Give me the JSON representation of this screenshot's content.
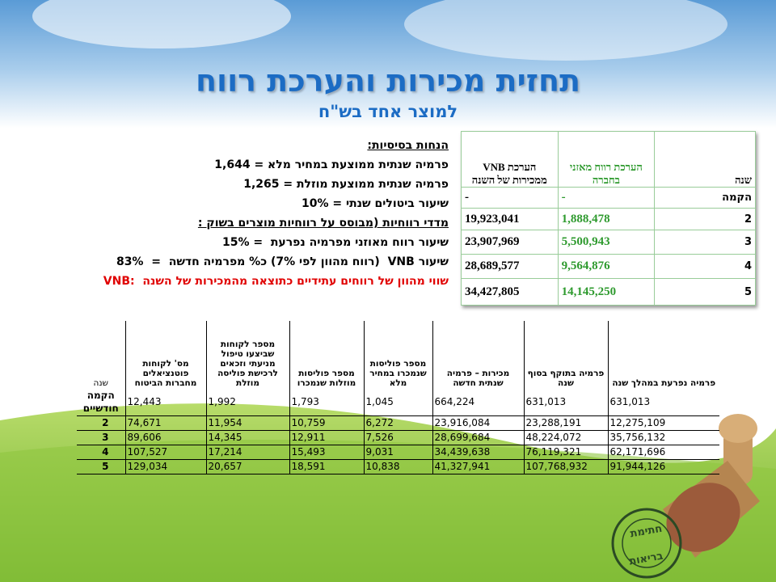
{
  "header": {
    "title": "תחזית מכירות והערכת רווח",
    "subtitle": "למוצר אחד בש\"ח"
  },
  "assumptions": {
    "heading": "הנחות בסיסיות:",
    "lines": [
      "פרמיה שנתית ממוצעת במחיר מלא = 1,644",
      "פרמיה שנתית ממוצעת מוזלת = 1,265",
      "שיעור ביטולים שנתי = 10%"
    ],
    "subheading": "מדדי רווחיות (מבוסס על רווחיות מוצרים בשוק :",
    "metrics": [
      "שיעור רווח מאוזני מפרמיה נפרעת  = 15%",
      "שיעור VNB  (רווח מהוון לפי 7%) כ% מפרמיה חדשה  =  83%"
    ],
    "note": "שווי מהוון של רווחים עתידיים כתוצאה מהמכירות של השנה  :VNB"
  },
  "profit_table": {
    "headers": [
      "שנה",
      "הערכת רווח מאזני בחברה",
      "הערכת VNB ממכירות של השנה"
    ],
    "rows": [
      [
        "הקמה",
        "-",
        "-"
      ],
      [
        "2",
        "1,888,478",
        "19,923,041"
      ],
      [
        "3",
        "5,500,943",
        "23,907,969"
      ],
      [
        "4",
        "9,564,876",
        "28,689,577"
      ],
      [
        "5",
        "14,145,250",
        "34,427,805"
      ]
    ]
  },
  "sales_table": {
    "headers": [
      "שנה",
      "מס' לקוחות פוטנציאלים מחברות הביטוח",
      "מספר לקוחות שביצעו טיפול מניעתי וזכאים לרכישת פוליסה מוזלת",
      "מספר פוליסות מוזלות שנמכרו",
      "מספר פוליסות שנמכרו במחיר מלא",
      "מכירות – פרמיה שנתית חדשה",
      "פרמיה בתוקף בסוף שנה",
      "פרמיה נפרעת במהלך שנה"
    ],
    "rows": [
      [
        "הקמה חודשיים",
        "12,443",
        "1,992",
        "1,793",
        "1,045",
        "664,224",
        "631,013",
        "631,013"
      ],
      [
        "2",
        "74,671",
        "11,954",
        "10,759",
        "6,272",
        "23,916,084",
        "23,288,191",
        "12,275,109"
      ],
      [
        "3",
        "89,606",
        "14,345",
        "12,911",
        "7,526",
        "28,699,684",
        "48,224,072",
        "35,756,132"
      ],
      [
        "4",
        "107,527",
        "17,214",
        "15,493",
        "9,031",
        "34,439,638",
        "76,119,321",
        "62,171,696"
      ],
      [
        "5",
        "129,034",
        "20,657",
        "18,591",
        "10,838",
        "41,327,941",
        "107,768,932",
        "91,944,126"
      ]
    ]
  },
  "stamp": {
    "top": "חתימת",
    "bottom": "בריאות"
  }
}
